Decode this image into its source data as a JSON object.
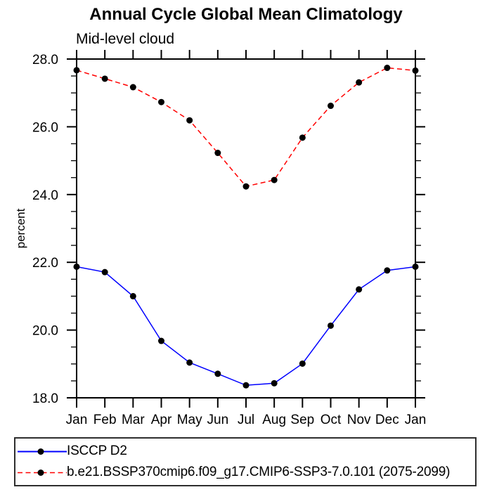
{
  "chart_data": {
    "type": "line",
    "title": "Annual Cycle Global Mean Climatology",
    "subtitle": "Mid-level cloud",
    "ylabel": "percent",
    "xlabel": "",
    "categories": [
      "Jan",
      "Feb",
      "Mar",
      "Apr",
      "May",
      "Jun",
      "Jul",
      "Aug",
      "Sep",
      "Oct",
      "Nov",
      "Dec",
      "Jan"
    ],
    "series": [
      {
        "name": "ISCCP D2",
        "color": "#0000ff",
        "style": "solid",
        "marker_color": "#000000",
        "values": [
          21.87,
          21.71,
          21.0,
          19.68,
          19.04,
          18.71,
          18.37,
          18.43,
          19.01,
          20.13,
          21.2,
          21.76,
          21.87
        ]
      },
      {
        "name": "b.e21.BSSP370cmip6.f09_g17.CMIP6-SSP3-7.0.101 (2075-2099)",
        "color": "#ff0000",
        "style": "dashed",
        "marker_color": "#000000",
        "values": [
          27.67,
          27.42,
          27.17,
          26.73,
          26.19,
          25.23,
          24.24,
          24.43,
          25.68,
          26.62,
          27.31,
          27.74,
          27.66
        ]
      }
    ],
    "ylim": [
      18,
      28
    ],
    "ytick_major_step": 2,
    "ytick_minor_step": 0.5,
    "ytick_labels": [
      "18.0",
      "20.0",
      "22.0",
      "24.0",
      "26.0",
      "28.0"
    ],
    "grid": false,
    "legend_position": "bottom",
    "axis_color": "#000000"
  }
}
